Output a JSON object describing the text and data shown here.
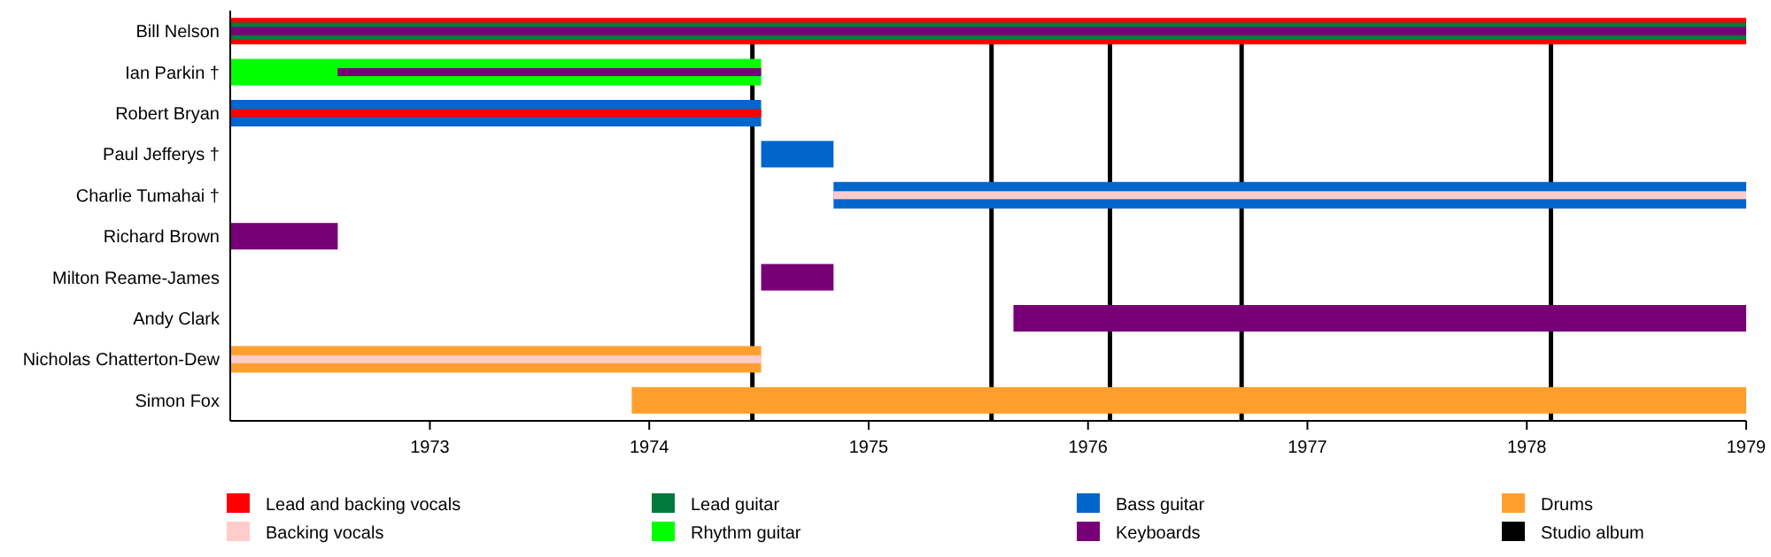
{
  "chart_data": {
    "type": "bar",
    "orientation": "horizontal",
    "categories": [
      "Bill Nelson",
      "Ian Parkin †",
      "Robert Bryan",
      "Paul Jefferys †",
      "Charlie Tumahai †",
      "Richard Brown",
      "Milton Reame-James",
      "Andy Clark",
      "Nicholas Chatterton-Dew",
      "Simon Fox"
    ],
    "series": [
      {
        "name": "Lead and backing vocals",
        "color": "#ff0000",
        "base": [
          1972.09,
          null,
          1972.09,
          null,
          null,
          null,
          null,
          null,
          null,
          null
        ],
        "values": [
          6.91,
          null,
          2.42,
          null,
          null,
          null,
          null,
          null,
          null,
          null
        ]
      },
      {
        "name": "Backing vocals",
        "color": "#ffcccc",
        "base": [
          null,
          null,
          null,
          null,
          1974.84,
          null,
          null,
          null,
          1972.09,
          null
        ],
        "values": [
          null,
          null,
          null,
          null,
          4.16,
          null,
          null,
          null,
          2.42,
          null
        ]
      },
      {
        "name": "Lead guitar",
        "color": "#007a3d",
        "base": [
          1972.09,
          null,
          null,
          null,
          null,
          null,
          null,
          null,
          null,
          null
        ],
        "values": [
          6.91,
          null,
          null,
          null,
          null,
          null,
          null,
          null,
          null,
          null
        ]
      },
      {
        "name": "Rhythm guitar",
        "color": "#00ff00",
        "base": [
          null,
          1972.09,
          null,
          null,
          null,
          null,
          null,
          null,
          null,
          null
        ],
        "values": [
          null,
          2.42,
          null,
          null,
          null,
          null,
          null,
          null,
          null,
          null
        ]
      },
      {
        "name": "Bass guitar",
        "color": "#0066cc",
        "base": [
          null,
          null,
          1972.09,
          1974.51,
          1974.84,
          null,
          null,
          null,
          null,
          null
        ],
        "values": [
          null,
          null,
          2.42,
          0.33,
          4.16,
          null,
          null,
          null,
          null,
          null
        ]
      },
      {
        "name": "Keyboards",
        "color": "#770077",
        "base": [
          1972.09,
          1972.58,
          null,
          null,
          null,
          1972.09,
          1974.51,
          1975.66,
          null,
          null
        ],
        "values": [
          6.91,
          1.93,
          null,
          null,
          null,
          0.49,
          0.33,
          3.34,
          null,
          null
        ]
      },
      {
        "name": "Drums",
        "color": "#ffa02e",
        "base": [
          null,
          null,
          null,
          null,
          null,
          null,
          null,
          null,
          1972.09,
          1973.92
        ],
        "values": [
          null,
          null,
          null,
          null,
          null,
          null,
          null,
          null,
          2.42,
          5.08
        ]
      }
    ],
    "xlim": [
      1972.09,
      1979
    ],
    "xticks": [
      1973,
      1974,
      1975,
      1976,
      1977,
      1978,
      1979
    ],
    "ref_lines": [
      {
        "axis": "x",
        "value": 1974.47,
        "label": "Studio album",
        "color": "#000000"
      },
      {
        "axis": "x",
        "value": 1975.56,
        "color": "#000000"
      },
      {
        "axis": "x",
        "value": 1976.1,
        "color": "#000000"
      },
      {
        "axis": "x",
        "value": 1976.7,
        "color": "#000000"
      },
      {
        "axis": "x",
        "value": 1978.11,
        "color": "#000000"
      }
    ],
    "legend": "bottom"
  }
}
